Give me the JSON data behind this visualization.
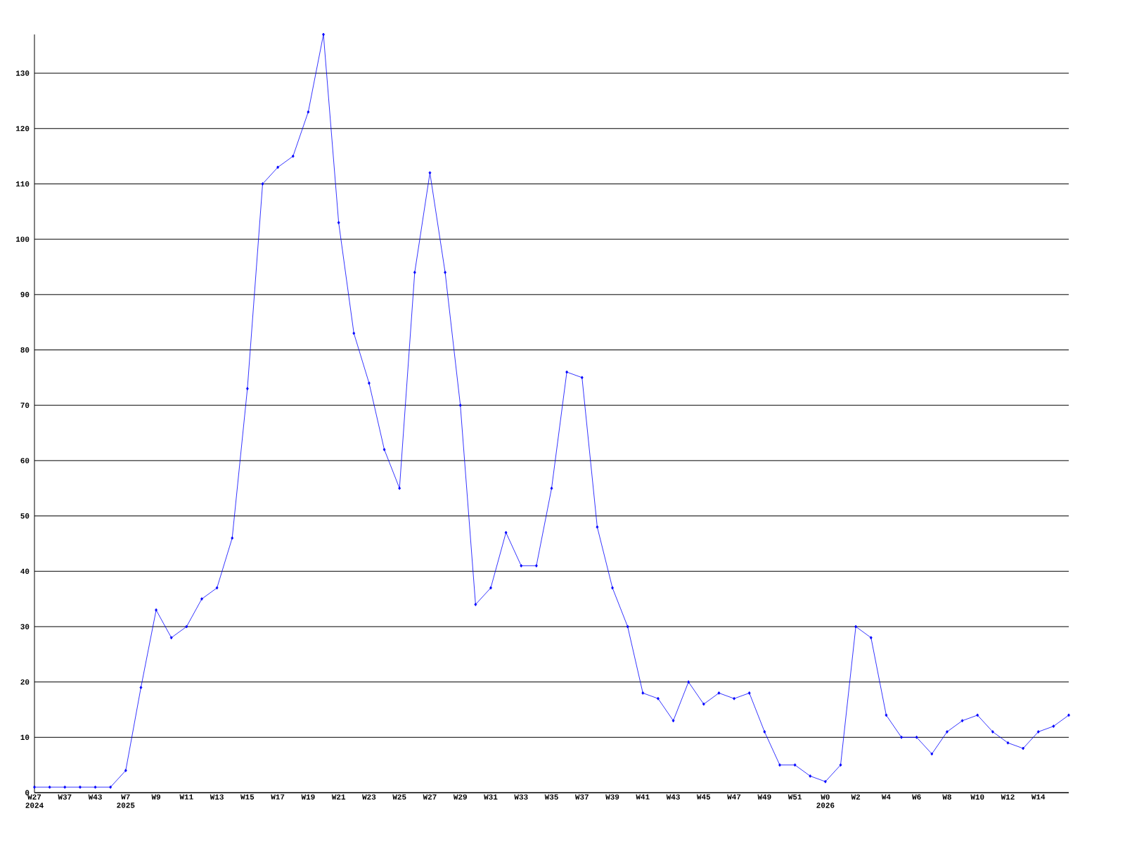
{
  "chart_data": {
    "type": "line",
    "categories": [
      "W27 2024",
      null,
      "W37",
      null,
      "W43",
      null,
      "W7 2025",
      null,
      "W9",
      null,
      "W11",
      null,
      "W13",
      null,
      "W15",
      null,
      "W17",
      null,
      "W19",
      null,
      "W21",
      null,
      "W23",
      null,
      "W25",
      null,
      "W27",
      null,
      "W29",
      null,
      "W31",
      null,
      "W33",
      null,
      "W35",
      null,
      "W37",
      null,
      "W39",
      null,
      "W41",
      null,
      "W43",
      null,
      "W45",
      null,
      "W47",
      null,
      "W49",
      null,
      "W51",
      null,
      "W0 2026",
      null,
      "W2",
      null,
      "W4",
      null,
      "W6",
      null,
      "W8",
      null,
      "W10",
      null,
      "W12",
      null,
      "W14",
      null,
      null
    ],
    "values": [
      1,
      1,
      1,
      1,
      1,
      1,
      4,
      19,
      33,
      28,
      30,
      35,
      37,
      46,
      73,
      110,
      113,
      115,
      123,
      137,
      103,
      83,
      74,
      62,
      55,
      94,
      112,
      94,
      70,
      34,
      37,
      47,
      41,
      41,
      55,
      76,
      75,
      48,
      37,
      30,
      18,
      17,
      13,
      20,
      16,
      18,
      17,
      18,
      11,
      5,
      5,
      3,
      2,
      5,
      30,
      28,
      14,
      10,
      10,
      7,
      11,
      13,
      14,
      11,
      9,
      8,
      11,
      12,
      14
    ],
    "color": "#0000ff",
    "marker": "diamond",
    "grid": "y",
    "ylim": [
      0,
      137
    ],
    "yticks": [
      0,
      10,
      20,
      30,
      40,
      50,
      60,
      70,
      80,
      90,
      100,
      110,
      120,
      130
    ]
  }
}
